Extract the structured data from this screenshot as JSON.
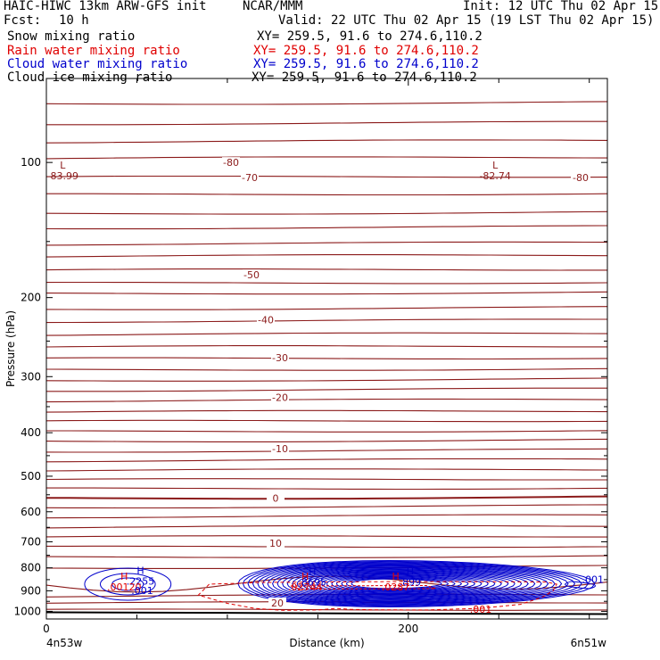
{
  "header": {
    "title": "HAIC-HIWC 13km ARW-GFS init",
    "org": "NCAR/MMM",
    "init": "Init: 12 UTC Thu 02 Apr 15",
    "fcst_label": "Fcst:",
    "fcst_value": "10 h",
    "valid": "Valid: 22 UTC Thu 02 Apr 15 (19 LST Thu 02 Apr 15)"
  },
  "fields": [
    {
      "name": "Snow mixing ratio",
      "xy": "XY= 259.5, 91.6 to 274.6,110.2",
      "color": "#000000"
    },
    {
      "name": "Rain water mixing ratio",
      "xy": "XY= 259.5, 91.6 to 274.6,110.2",
      "color": "#e00000"
    },
    {
      "name": "Cloud water mixing ratio",
      "xy": "XY= 259.5, 91.6 to 274.6,110.2",
      "color": "#0000cc"
    },
    {
      "name": "Cloud ice mixing ratio",
      "xy": "XY= 259.5, 91.6 to 274.6,110.2",
      "color": "#000000"
    }
  ],
  "chart_data": {
    "type": "contour",
    "ylabel": "Pressure (hPa)",
    "xlabel": "Distance (km)",
    "xlim": [
      0,
      310
    ],
    "ylim": [
      1040,
      65
    ],
    "y_scale": "log",
    "x_ticks": [
      0,
      200
    ],
    "x_minor_ticks": [
      50,
      100,
      150,
      250,
      300
    ],
    "y_ticks": [
      100,
      200,
      300,
      400,
      500,
      600,
      700,
      800,
      900,
      1000
    ],
    "endpoints": {
      "left": "4n53w",
      "right": "6n51w"
    },
    "temperature_contours": [
      {
        "level": -80,
        "label": "-80"
      },
      {
        "level": -70,
        "label": "-70"
      },
      {
        "level": -50,
        "label": "-50"
      },
      {
        "level": -40,
        "label": "-40"
      },
      {
        "level": -30,
        "label": "-30"
      },
      {
        "level": -20,
        "label": "-20"
      },
      {
        "level": -10,
        "label": "-10"
      },
      {
        "level": 0,
        "label": "0"
      },
      {
        "level": 10,
        "label": "10"
      },
      {
        "level": 20,
        "label": "20"
      }
    ],
    "extrema_labels": [
      {
        "type": "L",
        "value": "-83.99",
        "x": 9,
        "p": 107,
        "color": "#8b1a1a"
      },
      {
        "type": "L",
        "value": "-82.74",
        "x": 248,
        "p": 107,
        "color": "#8b1a1a"
      },
      {
        "type": "H",
        "value": ".2255",
        "x": 52,
        "p": 857,
        "color": "#0000cc"
      },
      {
        "type": "H",
        "value": ".8695",
        "x": 147,
        "p": 860,
        "color": "#0000cc"
      },
      {
        "type": "H",
        "value": ".899",
        "x": 201,
        "p": 860,
        "color": "#0000cc"
      },
      {
        "type": "H",
        "value": ".00120",
        "x": 43,
        "p": 883,
        "color": "#e00000"
      },
      {
        "type": "H",
        "value": ".02744",
        "x": 143,
        "p": 882,
        "color": "#e00000"
      },
      {
        "type": "H",
        "value": ".0287",
        "x": 193,
        "p": 882,
        "color": "#e00000"
      }
    ],
    "contour_labels": [
      {
        "text": ".001",
        "x": 302,
        "p": 848,
        "color": "#0000cc"
      },
      {
        "text": ".001",
        "x": 53,
        "p": 898,
        "color": "#0000cc"
      },
      {
        "text": ".001",
        "x": 240,
        "p": 988,
        "color": "#e00000"
      }
    ]
  }
}
